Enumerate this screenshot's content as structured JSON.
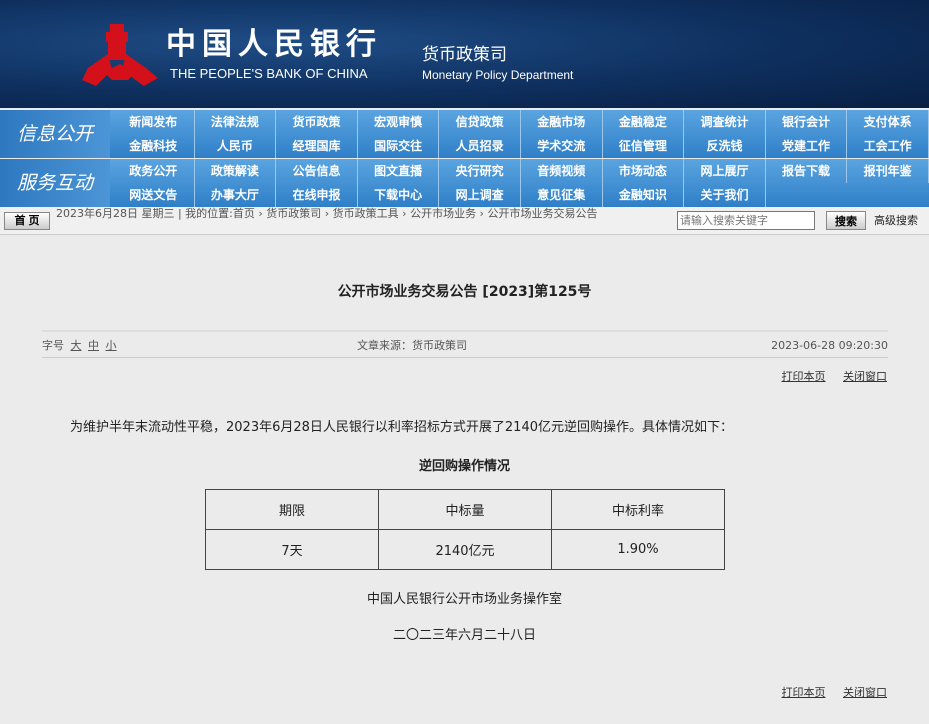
{
  "header": {
    "bank_cn": "中国人民银行",
    "bank_en": "THE PEOPLE'S BANK OF CHINA",
    "dept_cn": "货币政策司",
    "dept_en": "Monetary Policy Department",
    "logo_color": "#d4101a"
  },
  "nav": {
    "info_label": "信息公开",
    "info_items": [
      "新闻发布",
      "法律法规",
      "货币政策",
      "宏观审慎",
      "信贷政策",
      "金融市场",
      "金融稳定",
      "调查统计",
      "银行会计",
      "支付体系",
      "金融科技",
      "人民币",
      "经理国库",
      "国际交往",
      "人员招录",
      "学术交流",
      "征信管理",
      "反洗钱",
      "党建工作",
      "工会工作"
    ],
    "service_label": "服务互动",
    "service_items": [
      "政务公开",
      "政策解读",
      "公告信息",
      "图文直播",
      "央行研究",
      "音频视频",
      "市场动态",
      "网上展厅",
      "报告下载",
      "报刊年鉴",
      "网送文告",
      "办事大厅",
      "在线申报",
      "下载中心",
      "网上调查",
      "意见征集",
      "金融知识",
      "关于我们"
    ]
  },
  "crumbbar": {
    "home": "首 页",
    "crumb": "2023年6月28日 星期三 | 我的位置:首页 › 货币政策司 › 货币政策工具 › 公开市场业务 › 公开市场业务交易公告",
    "search_placeholder": "请输入搜索关键字",
    "search_btn": "搜索",
    "advanced": "高级搜索"
  },
  "article": {
    "title": "公开市场业务交易公告 [2023]第125号",
    "font_label": "字号",
    "font_large": "大",
    "font_medium": "中",
    "font_small": "小",
    "source": "文章来源：货币政策司",
    "timestamp": "2023-06-28 09:20:30",
    "print": "打印本页",
    "close": "关闭窗口",
    "intro": "为维护半年末流动性平稳，2023年6月28日人民银行以利率招标方式开展了2140亿元逆回购操作。具体情况如下：",
    "table_caption": "逆回购操作情况",
    "table_headers": [
      "期限",
      "中标量",
      "中标利率"
    ],
    "table_row": [
      "7天",
      "2140亿元",
      "1.90%"
    ],
    "signature": "中国人民银行公开市场业务操作室",
    "date": "二〇二三年六月二十八日"
  }
}
